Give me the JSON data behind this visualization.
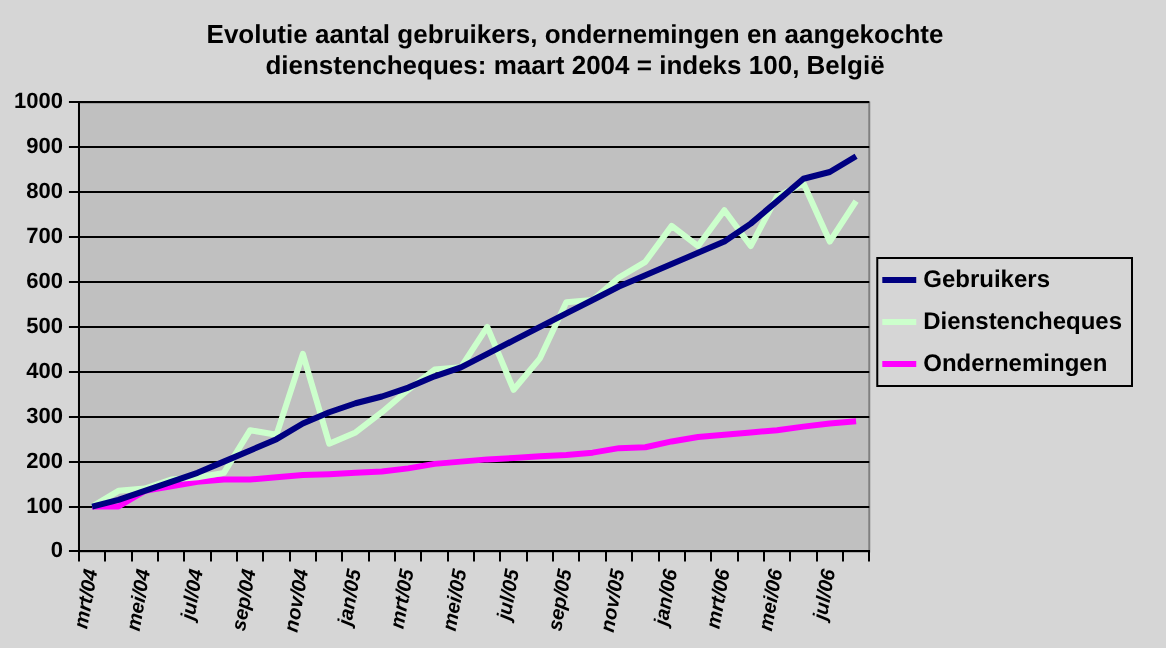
{
  "chart_data": {
    "type": "line",
    "title": "Evolutie aantal gebruikers, ondernemingen en aangekochte dienstencheques: maart 2004 = indeks 100, België",
    "categories": [
      "mrt/04",
      null,
      "mei/04",
      null,
      "jul/04",
      null,
      "sep/04",
      null,
      "nov/04",
      null,
      "jan/05",
      null,
      "mrt/05",
      null,
      "mei/05",
      null,
      "jul/05",
      null,
      "sep/05",
      null,
      "nov/05",
      null,
      "jan/06",
      null,
      "mrt/06",
      null,
      "mei/06",
      null,
      "jul/06",
      null
    ],
    "series": [
      {
        "name": "Gebruikers",
        "color": "#000080",
        "values": [
          100,
          115,
          135,
          155,
          175,
          200,
          225,
          250,
          285,
          310,
          330,
          345,
          365,
          390,
          410,
          440,
          470,
          500,
          530,
          560,
          590,
          615,
          640,
          665,
          690,
          730,
          780,
          830,
          845,
          880
        ]
      },
      {
        "name": "Dienstencheques",
        "color": "#ccffcc",
        "values": [
          100,
          135,
          140,
          160,
          165,
          175,
          270,
          260,
          440,
          240,
          265,
          310,
          360,
          405,
          410,
          500,
          360,
          430,
          555,
          560,
          610,
          645,
          725,
          680,
          760,
          680,
          790,
          820,
          690,
          780
        ]
      },
      {
        "name": "Ondernemingen",
        "color": "#ff00ff",
        "values": [
          100,
          100,
          135,
          145,
          155,
          160,
          160,
          165,
          170,
          172,
          175,
          178,
          185,
          195,
          200,
          205,
          208,
          212,
          215,
          220,
          230,
          232,
          245,
          255,
          260,
          265,
          270,
          278,
          285,
          290
        ]
      }
    ],
    "ylim": [
      0,
      1000
    ],
    "yticks": [
      0,
      100,
      200,
      300,
      400,
      500,
      600,
      700,
      800,
      900,
      1000
    ],
    "grid": "y",
    "legend": "right",
    "marker": "none"
  }
}
